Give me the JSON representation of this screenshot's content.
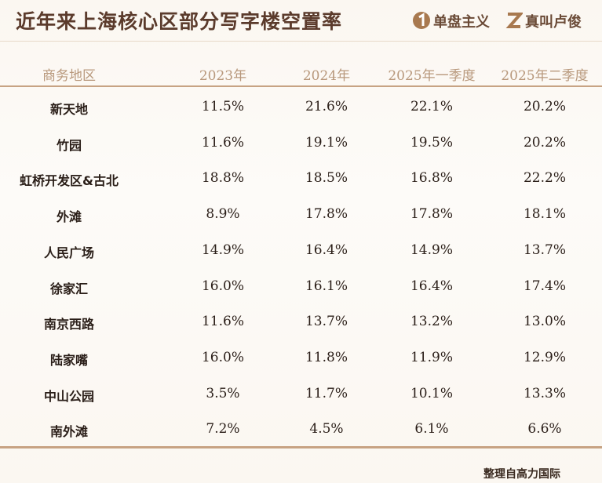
{
  "header": {
    "title": "近年来上海核心区部分写字楼空置率",
    "brands": [
      "单盘主义",
      "真叫卢俊"
    ]
  },
  "table": {
    "columns": [
      "商务地区",
      "2023年",
      "2024年",
      "2025年一季度",
      "2025年二季度"
    ],
    "rows": [
      [
        "新天地",
        "11.5%",
        "21.6%",
        "22.1%",
        "20.2%"
      ],
      [
        "竹园",
        "11.6%",
        "19.1%",
        "19.5%",
        "20.2%"
      ],
      [
        "虹桥开发区&古北",
        "18.8%",
        "18.5%",
        "16.8%",
        "22.2%"
      ],
      [
        "外滩",
        "8.9%",
        "17.8%",
        "17.8%",
        "18.1%"
      ],
      [
        "人民广场",
        "14.9%",
        "16.4%",
        "14.9%",
        "13.7%"
      ],
      [
        "徐家汇",
        "16.0%",
        "16.1%",
        "16.4%",
        "17.4%"
      ],
      [
        "南京西路",
        "11.6%",
        "13.7%",
        "13.2%",
        "13.0%"
      ],
      [
        "陆家嘴",
        "16.0%",
        "11.8%",
        "11.9%",
        "12.9%"
      ],
      [
        "中山公园",
        "3.5%",
        "11.7%",
        "10.1%",
        "13.3%"
      ],
      [
        "南外滩",
        "7.2%",
        "4.5%",
        "6.1%",
        "6.6%"
      ]
    ]
  },
  "footer": {
    "source": "整理自高力国际"
  }
}
